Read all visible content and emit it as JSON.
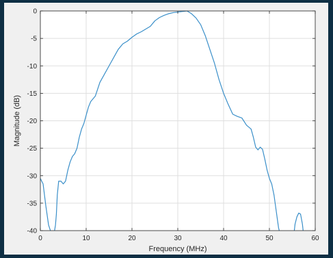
{
  "colors": {
    "page_background": "#0e2f44",
    "figure_background": "#f0f0f0",
    "axes_background": "#ffffff",
    "line": "#3a8fc9",
    "grid": "#dfdfdf",
    "axis": "#262626"
  },
  "chart_data": {
    "type": "line",
    "title": "",
    "xlabel": "Frequency (MHz)",
    "ylabel": "Magnitude (dB)",
    "xlim": [
      0,
      60
    ],
    "ylim": [
      -40,
      0
    ],
    "xticks": [
      0,
      10,
      20,
      30,
      40,
      50,
      60
    ],
    "xtick_labels": [
      "0",
      "10",
      "20",
      "30",
      "40",
      "50",
      "60"
    ],
    "yticks": [
      -40,
      -35,
      -30,
      -25,
      -20,
      -15,
      -10,
      -5,
      0
    ],
    "ytick_labels": [
      "-40",
      "-35",
      "-30",
      "-25",
      "-20",
      "-15",
      "-10",
      "-5",
      "0"
    ],
    "grid": true,
    "legend": "none",
    "series": [
      {
        "x": [
          0,
          0.6,
          1.2,
          1.8,
          2.2,
          2.6,
          3.0,
          3.3,
          3.5,
          3.7,
          4.0,
          4.5,
          5.0,
          5.5,
          6.0,
          6.5,
          7.0,
          7.5,
          8.0,
          8.5,
          9.0,
          9.5,
          10.0,
          10.5,
          11.0,
          11.5,
          12.0,
          13.0,
          14.0,
          15.0,
          16.0,
          17.0,
          18.0,
          19.0,
          20.0,
          21.0,
          22.0,
          23.0,
          24.0,
          25.0,
          26.0,
          27.0,
          28.0,
          29.0,
          30.0,
          31.0,
          32.0,
          33.0,
          34.0,
          35.0,
          36.0,
          37.0,
          38.0,
          39.0,
          40.0,
          41.0,
          42.0,
          43.0,
          44.0,
          45.0,
          46.0,
          46.5,
          47.0,
          47.5,
          48.0,
          48.5,
          49.0,
          49.5,
          50.0,
          50.5,
          51.0,
          51.5,
          52.0,
          52.3,
          52.5
        ],
        "y": [
          -30.5,
          -31.5,
          -35.5,
          -39.0,
          -40.0,
          -40.5,
          -40.5,
          -39.0,
          -37.0,
          -33.5,
          -31.0,
          -31.0,
          -31.5,
          -31.0,
          -29.0,
          -27.5,
          -26.5,
          -26.0,
          -25.0,
          -23.0,
          -21.5,
          -20.5,
          -19.0,
          -17.5,
          -16.5,
          -16.0,
          -15.5,
          -13.0,
          -11.5,
          -10.0,
          -8.5,
          -7.0,
          -6.0,
          -5.5,
          -4.8,
          -4.2,
          -3.8,
          -3.3,
          -2.8,
          -1.8,
          -1.2,
          -0.8,
          -0.5,
          -0.3,
          -0.2,
          -0.1,
          0.0,
          -0.5,
          -1.3,
          -2.5,
          -4.5,
          -7.0,
          -9.5,
          -12.5,
          -15.0,
          -17.0,
          -18.8,
          -19.2,
          -19.5,
          -20.8,
          -21.5,
          -23.0,
          -24.8,
          -25.3,
          -24.8,
          -25.2,
          -27.0,
          -29.0,
          -30.5,
          -31.5,
          -33.5,
          -36.5,
          -39.5,
          -40.5,
          -41.0
        ]
      },
      {
        "x": [
          55.3,
          55.6,
          56.0,
          56.4,
          56.8,
          57.2,
          57.5
        ],
        "y": [
          -41.0,
          -38.8,
          -37.5,
          -36.8,
          -37.0,
          -38.8,
          -41.0
        ]
      }
    ]
  }
}
